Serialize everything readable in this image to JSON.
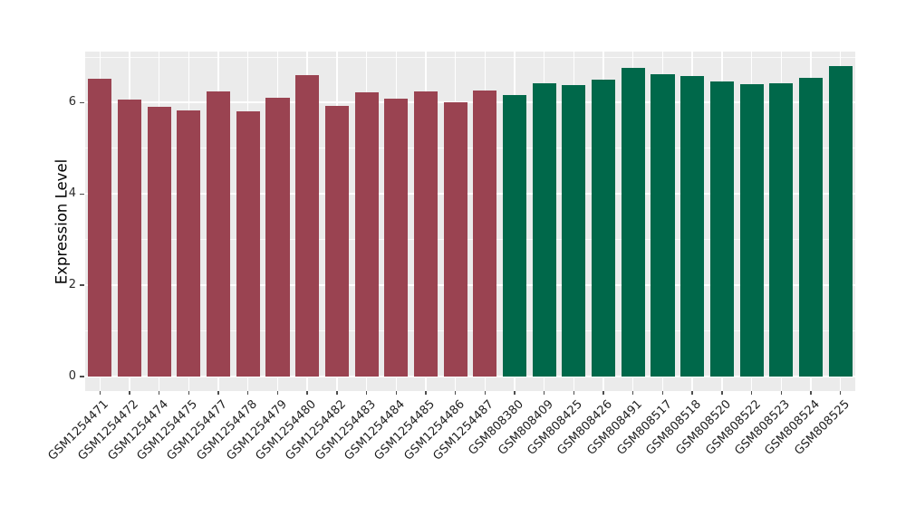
{
  "chart_data": {
    "type": "bar",
    "title": "",
    "xlabel": "",
    "ylabel": "Expression Level",
    "ylim": [
      -0.32,
      7.12
    ],
    "yticks": [
      0,
      2,
      4,
      6
    ],
    "ytick_labels": [
      "0",
      "2",
      "4",
      "6"
    ],
    "yticks_minor": [
      1,
      3,
      5,
      7
    ],
    "grid": true,
    "legend": false,
    "panel_bg_color": "#EBEBEB",
    "grid_color": "#FFFFFF",
    "group_colors": {
      "group1": "#9A4351",
      "group2": "#00684A"
    },
    "bars": [
      {
        "label": "GSM1254471",
        "value": 6.53,
        "group": "group1"
      },
      {
        "label": "GSM1254472",
        "value": 6.07,
        "group": "group1"
      },
      {
        "label": "GSM1254474",
        "value": 5.91,
        "group": "group1"
      },
      {
        "label": "GSM1254475",
        "value": 5.84,
        "group": "group1"
      },
      {
        "label": "GSM1254477",
        "value": 6.25,
        "group": "group1"
      },
      {
        "label": "GSM1254478",
        "value": 5.81,
        "group": "group1"
      },
      {
        "label": "GSM1254479",
        "value": 6.1,
        "group": "group1"
      },
      {
        "label": "GSM1254480",
        "value": 6.61,
        "group": "group1"
      },
      {
        "label": "GSM1254482",
        "value": 5.93,
        "group": "group1"
      },
      {
        "label": "GSM1254483",
        "value": 6.22,
        "group": "group1"
      },
      {
        "label": "GSM1254484",
        "value": 6.08,
        "group": "group1"
      },
      {
        "label": "GSM1254485",
        "value": 6.25,
        "group": "group1"
      },
      {
        "label": "GSM1254486",
        "value": 6.01,
        "group": "group1"
      },
      {
        "label": "GSM1254487",
        "value": 6.27,
        "group": "group1"
      },
      {
        "label": "GSM808380",
        "value": 6.16,
        "group": "group2"
      },
      {
        "label": "GSM808409",
        "value": 6.43,
        "group": "group2"
      },
      {
        "label": "GSM808425",
        "value": 6.39,
        "group": "group2"
      },
      {
        "label": "GSM808426",
        "value": 6.51,
        "group": "group2"
      },
      {
        "label": "GSM808491",
        "value": 6.77,
        "group": "group2"
      },
      {
        "label": "GSM808517",
        "value": 6.62,
        "group": "group2"
      },
      {
        "label": "GSM808518",
        "value": 6.58,
        "group": "group2"
      },
      {
        "label": "GSM808520",
        "value": 6.46,
        "group": "group2"
      },
      {
        "label": "GSM808522",
        "value": 6.41,
        "group": "group2"
      },
      {
        "label": "GSM808523",
        "value": 6.43,
        "group": "group2"
      },
      {
        "label": "GSM808524",
        "value": 6.55,
        "group": "group2"
      },
      {
        "label": "GSM808525",
        "value": 6.81,
        "group": "group2"
      }
    ]
  }
}
